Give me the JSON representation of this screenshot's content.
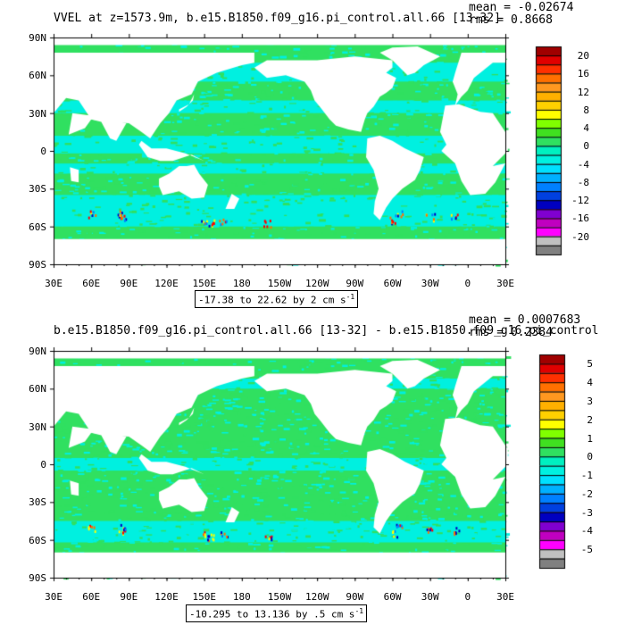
{
  "colors": {
    "ocean_bg": "#00f0e0",
    "ocean_band": "#30e060",
    "land": "#ffffff",
    "frame": "#000000"
  },
  "panels": [
    {
      "title": "VVEL at z=1573.9m, b.e15.B1850.f09_g16.pi_control.all.66 [13-32]",
      "mean": "mean = -0.02674",
      "rms": "rms = 0.8668",
      "range_text": "-17.38 to 22.62 by 2 cm s",
      "unit_exponent": "-1",
      "lat_ticks": [
        "90N",
        "60N",
        "30N",
        "0",
        "30S",
        "60S",
        "90S"
      ],
      "lon_ticks": [
        "30E",
        "60E",
        "90E",
        "120E",
        "150E",
        "180",
        "150W",
        "120W",
        "90W",
        "60W",
        "30W",
        "0",
        "30E"
      ],
      "colorbar": {
        "labels": [
          "20",
          "16",
          "12",
          "8",
          "4",
          "0",
          "-4",
          "-8",
          "-12",
          "-16",
          "-20"
        ],
        "colors": [
          "#a00000",
          "#e00000",
          "#ff3000",
          "#ff7000",
          "#ff9820",
          "#ffb000",
          "#ffd000",
          "#ffff00",
          "#80ff00",
          "#40e020",
          "#30e060",
          "#00f0c0",
          "#00f0e0",
          "#00e0ff",
          "#00b0ff",
          "#0080ff",
          "#0040e0",
          "#0000c0",
          "#8000d0",
          "#c000c0",
          "#ff00ff",
          "#c0c0c0",
          "#808080"
        ]
      }
    },
    {
      "title": "b.e15.B1850.f09_g16.pi_control.all.66 [13-32] - b.e15.B1850.f09_g16.pi_control",
      "mean": "mean = 0.0007683",
      "rms": "rms = 0.2384",
      "range_text": "-10.295 to 13.136 by .5 cm s",
      "unit_exponent": "-1",
      "lat_ticks": [
        "90N",
        "60N",
        "30N",
        "0",
        "30S",
        "60S",
        "90S"
      ],
      "lon_ticks": [
        "30E",
        "60E",
        "90E",
        "120E",
        "150E",
        "180",
        "150W",
        "120W",
        "90W",
        "60W",
        "30W",
        "0",
        "30E"
      ],
      "colorbar": {
        "labels": [
          "5",
          "4",
          "3",
          "2",
          "1",
          "0",
          "-1",
          "-2",
          "-3",
          "-4",
          "-5"
        ],
        "colors": [
          "#a00000",
          "#e00000",
          "#ff3000",
          "#ff7000",
          "#ff9820",
          "#ffb000",
          "#ffd000",
          "#ffff00",
          "#80ff00",
          "#40e020",
          "#30e060",
          "#00f0c0",
          "#00f0e0",
          "#00e0ff",
          "#00b0ff",
          "#0080ff",
          "#0040e0",
          "#0000c0",
          "#8000d0",
          "#c000c0",
          "#ff00ff",
          "#c0c0c0",
          "#808080"
        ]
      }
    }
  ]
}
